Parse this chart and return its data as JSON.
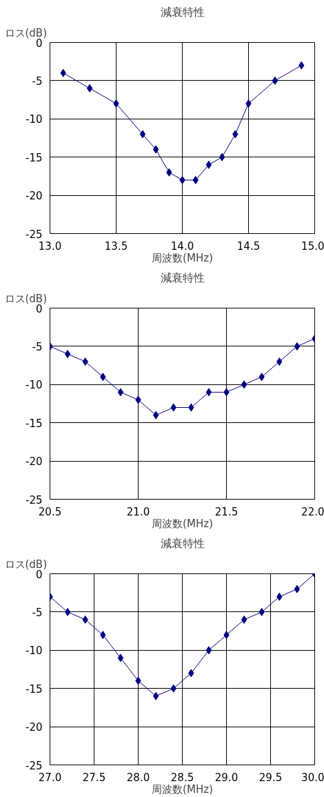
{
  "chart_data": [
    {
      "type": "line",
      "title": "減衰特性",
      "xlabel": "周波数(MHz)",
      "ylabel": "ロス(dB)",
      "xlim": [
        13.0,
        15.0
      ],
      "xticks": [
        {
          "value": 13.0,
          "label": "13.0"
        },
        {
          "value": 13.5,
          "label": "13.5"
        },
        {
          "value": 14.0,
          "label": "14.0"
        },
        {
          "value": 14.5,
          "label": "14.5"
        },
        {
          "value": 15.0,
          "label": "15.0"
        }
      ],
      "ylim": [
        -25,
        0
      ],
      "yticks": [
        -25,
        -20,
        -15,
        -10,
        -5,
        0
      ],
      "grid": true,
      "marker": "diamond",
      "line_style": "solid",
      "x": [
        13.1,
        13.3,
        13.5,
        13.7,
        13.8,
        13.9,
        14.0,
        14.1,
        14.2,
        14.3,
        14.4,
        14.5,
        14.7,
        14.9
      ],
      "series": [
        {
          "color": "#000080",
          "values": [
            -4,
            -6,
            -8,
            -12,
            -14,
            -17,
            -18,
            -18,
            -16,
            -15,
            -12,
            -8,
            -5,
            -3
          ]
        }
      ]
    },
    {
      "type": "line",
      "title": "減衰特性",
      "xlabel": "周波数(MHz)",
      "ylabel": "ロス(dB)",
      "xlim": [
        20.5,
        22.0
      ],
      "xticks": [
        {
          "value": 20.5,
          "label": "20.5"
        },
        {
          "value": 21.0,
          "label": "21.0"
        },
        {
          "value": 21.5,
          "label": "21.5"
        },
        {
          "value": 22.0,
          "label": "22.0"
        }
      ],
      "ylim": [
        -25,
        0
      ],
      "yticks": [
        -25,
        -20,
        -15,
        -10,
        -5,
        0
      ],
      "grid": true,
      "marker": "diamond",
      "line_style": "solid",
      "x": [
        20.5,
        20.6,
        20.7,
        20.8,
        20.9,
        21.0,
        21.1,
        21.2,
        21.3,
        21.4,
        21.5,
        21.6,
        21.7,
        21.8,
        21.9,
        22.0
      ],
      "series": [
        {
          "color": "#000080",
          "values": [
            -5,
            -6,
            -7,
            -9,
            -11,
            -12,
            -14,
            -13,
            -13,
            -11,
            -11,
            -10,
            -9,
            -7,
            -5,
            -4
          ]
        }
      ]
    },
    {
      "type": "line",
      "title": "減衰特性",
      "xlabel": "周波数(MHz)",
      "ylabel": "ロス(dB)",
      "xlim": [
        27.0,
        30.0
      ],
      "xticks": [
        {
          "value": 27.0,
          "label": "27.0"
        },
        {
          "value": 27.5,
          "label": "27.5"
        },
        {
          "value": 28.0,
          "label": "28.0"
        },
        {
          "value": 28.5,
          "label": "28.5"
        },
        {
          "value": 29.0,
          "label": "29.0"
        },
        {
          "value": 29.5,
          "label": "29.5"
        },
        {
          "value": 30.0,
          "label": "30.0"
        }
      ],
      "ylim": [
        -25,
        0
      ],
      "yticks": [
        -25,
        -20,
        -15,
        -10,
        -5,
        0
      ],
      "grid": true,
      "marker": "diamond",
      "line_style": "solid",
      "x": [
        27.0,
        27.2,
        27.4,
        27.6,
        27.8,
        28.0,
        28.2,
        28.4,
        28.6,
        28.8,
        29.0,
        29.2,
        29.4,
        29.6,
        29.8,
        30.0
      ],
      "series": [
        {
          "color": "#000080",
          "values": [
            -3,
            -5,
            -6,
            -8,
            -11,
            -14,
            -16,
            -15,
            -13,
            -10,
            -8,
            -6,
            -5,
            -3,
            -2,
            0
          ]
        }
      ]
    }
  ]
}
